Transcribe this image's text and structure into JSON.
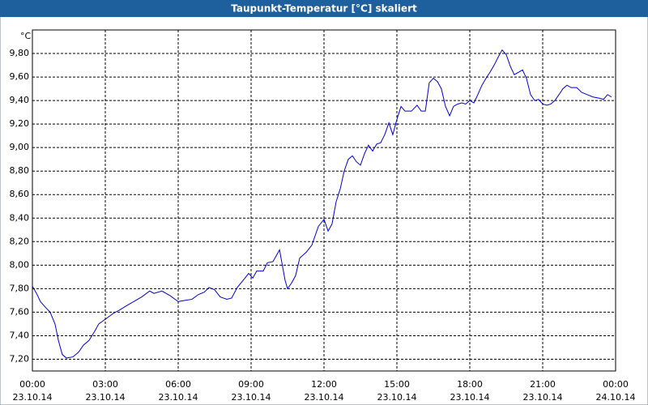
{
  "chart_data": {
    "type": "line",
    "title": "Taupunkt-Temperatur [°C] skaliert",
    "y_label": "°C",
    "xlim": [
      0,
      24
    ],
    "ylim": [
      7.1,
      10.0
    ],
    "xticks": [
      {
        "value": 0,
        "label": "00:00"
      },
      {
        "value": 3,
        "label": "03:00"
      },
      {
        "value": 6,
        "label": "06:00"
      },
      {
        "value": 9,
        "label": "09:00"
      },
      {
        "value": 12,
        "label": "12:00"
      },
      {
        "value": 15,
        "label": "15:00"
      },
      {
        "value": 18,
        "label": "18:00"
      },
      {
        "value": 21,
        "label": "21:00"
      },
      {
        "value": 24,
        "label": "00:00"
      }
    ],
    "x_tick_dates": [
      "23.10.14",
      "23.10.14",
      "23.10.14",
      "23.10.14",
      "23.10.14",
      "23.10.14",
      "23.10.14",
      "23.10.14",
      "24.10.14"
    ],
    "yticks": [
      {
        "value": 7.2,
        "label": "7,20"
      },
      {
        "value": 7.4,
        "label": "7,40"
      },
      {
        "value": 7.6,
        "label": "7,60"
      },
      {
        "value": 7.8,
        "label": "7,80"
      },
      {
        "value": 8.0,
        "label": "8,00"
      },
      {
        "value": 8.2,
        "label": "8,20"
      },
      {
        "value": 8.4,
        "label": "8,40"
      },
      {
        "value": 8.6,
        "label": "8,60"
      },
      {
        "value": 8.8,
        "label": "8,80"
      },
      {
        "value": 9.0,
        "label": "9,00"
      },
      {
        "value": 9.2,
        "label": "9,20"
      },
      {
        "value": 9.4,
        "label": "9,40"
      },
      {
        "value": 9.6,
        "label": "9,60"
      },
      {
        "value": 9.8,
        "label": "9,80"
      }
    ],
    "grid": true,
    "series": [
      {
        "name": "Taupunkt-Temperatur",
        "color": "#0000cc",
        "x": [
          0,
          0.17,
          0.33,
          0.5,
          0.73,
          0.93,
          1.07,
          1.23,
          1.4,
          1.67,
          1.9,
          2.1,
          2.33,
          2.57,
          2.73,
          3,
          3.33,
          3.6,
          3.83,
          4.17,
          4.5,
          4.83,
          5,
          5.33,
          5.67,
          6,
          6.27,
          6.57,
          6.83,
          7.07,
          7.27,
          7.5,
          7.73,
          8,
          8.2,
          8.43,
          8.67,
          8.9,
          9.07,
          9.23,
          9.5,
          9.67,
          9.9,
          10.17,
          10.4,
          10.5,
          10.67,
          10.83,
          11,
          11.27,
          11.5,
          11.77,
          12,
          12.17,
          12.33,
          12.5,
          12.67,
          12.83,
          13,
          13.17,
          13.33,
          13.5,
          13.67,
          13.83,
          14,
          14.17,
          14.33,
          14.5,
          14.67,
          14.83,
          15,
          15.17,
          15.33,
          15.6,
          15.83,
          16,
          16.17,
          16.33,
          16.5,
          16.67,
          16.83,
          17,
          17.17,
          17.33,
          17.5,
          17.67,
          17.83,
          18,
          18.17,
          18.33,
          18.5,
          18.67,
          18.83,
          19,
          19.17,
          19.33,
          19.5,
          19.67,
          19.83,
          20,
          20.17,
          20.33,
          20.5,
          20.67,
          20.83,
          21,
          21.17,
          21.33,
          21.5,
          21.67,
          21.83,
          22,
          22.17,
          22.4,
          22.6,
          22.83,
          23.07,
          23.33,
          23.5,
          23.67,
          23.83
        ],
        "values": [
          7.82,
          7.76,
          7.69,
          7.65,
          7.6,
          7.5,
          7.36,
          7.24,
          7.21,
          7.22,
          7.26,
          7.32,
          7.36,
          7.44,
          7.5,
          7.54,
          7.59,
          7.62,
          7.65,
          7.69,
          7.73,
          7.78,
          7.76,
          7.78,
          7.74,
          7.69,
          7.7,
          7.71,
          7.75,
          7.77,
          7.81,
          7.79,
          7.73,
          7.71,
          7.72,
          7.81,
          7.87,
          7.93,
          7.89,
          7.95,
          7.95,
          8.02,
          8.03,
          8.13,
          7.87,
          7.8,
          7.85,
          7.91,
          8.06,
          8.11,
          8.17,
          8.33,
          8.39,
          8.29,
          8.35,
          8.54,
          8.65,
          8.8,
          8.9,
          8.93,
          8.88,
          8.85,
          8.95,
          9.02,
          8.97,
          9.03,
          9.04,
          9.11,
          9.21,
          9.11,
          9.24,
          9.35,
          9.31,
          9.31,
          9.36,
          9.31,
          9.31,
          9.55,
          9.59,
          9.56,
          9.5,
          9.35,
          9.27,
          9.35,
          9.37,
          9.38,
          9.37,
          9.4,
          9.38,
          9.45,
          9.53,
          9.59,
          9.64,
          9.7,
          9.77,
          9.83,
          9.79,
          9.69,
          9.62,
          9.64,
          9.66,
          9.59,
          9.45,
          9.4,
          9.41,
          9.37,
          9.36,
          9.37,
          9.4,
          9.45,
          9.5,
          9.53,
          9.51,
          9.51,
          9.47,
          9.45,
          9.43,
          9.42,
          9.41,
          9.45,
          9.43
        ]
      }
    ]
  }
}
